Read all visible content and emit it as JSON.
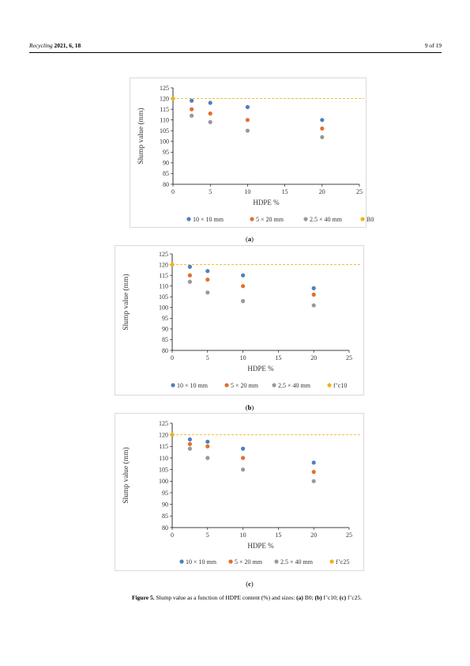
{
  "header": {
    "journal_name": "Recycling",
    "citation": "2021, 6, 18",
    "page": "9 of 19"
  },
  "colors": {
    "series_10x10": "#4e81bd",
    "series_5x20": "#e0702f",
    "series_2_5x40": "#999999",
    "reference": "#f2b21a"
  },
  "figure": {
    "caption_label": "Figure 5.",
    "caption_text": "Slump value as a function of HDPE content (%) and sizes: ",
    "caption_parts": [
      {
        "letter": "(a)",
        "text": " B0; "
      },
      {
        "letter": "(b)",
        "text": " f’c10; "
      },
      {
        "letter": "(c)",
        "text": " f’c25."
      }
    ],
    "panels": [
      {
        "label_open": "(",
        "label_letter": "a",
        "label_close": ")"
      },
      {
        "label_open": "(",
        "label_letter": "b",
        "label_close": ")"
      },
      {
        "label_open": "(",
        "label_letter": "c",
        "label_close": ")"
      }
    ]
  },
  "chart_data": [
    {
      "type": "scatter",
      "xlabel": "HDPE  %",
      "ylabel": "Slump value (mm)",
      "xlim": [
        0,
        25
      ],
      "ylim": [
        80,
        125
      ],
      "xticks": [
        "0",
        "5",
        "10",
        "15",
        "20",
        "25"
      ],
      "yticks": [
        "80",
        "85",
        "90",
        "95",
        "100",
        "105",
        "110",
        "115",
        "120",
        "125"
      ],
      "legend_position": "bottom",
      "series": [
        {
          "name": "10  × 10 mm",
          "x": [
            2.5,
            5,
            10,
            20
          ],
          "y": [
            119,
            118,
            116,
            110
          ]
        },
        {
          "name": "5 × 20 mm",
          "x": [
            2.5,
            5,
            10,
            20
          ],
          "y": [
            115,
            113,
            110,
            106
          ]
        },
        {
          "name": "2.5 × 40 mm",
          "x": [
            2.5,
            5,
            10,
            20
          ],
          "y": [
            112,
            109,
            105,
            102
          ]
        },
        {
          "name": "B0",
          "x": [
            0
          ],
          "y": [
            120
          ],
          "reference_line": true
        }
      ]
    },
    {
      "type": "scatter",
      "xlabel": "HDPE %",
      "ylabel": "Slump value (mm)",
      "xlim": [
        0,
        25
      ],
      "ylim": [
        80,
        125
      ],
      "xticks": [
        "0",
        "5",
        "10",
        "15",
        "20",
        "25"
      ],
      "yticks": [
        "80",
        "85",
        "90",
        "95",
        "100",
        "105",
        "110",
        "115",
        "120",
        "125"
      ],
      "legend_position": "bottom",
      "series": [
        {
          "name": "10 × 10 mm",
          "x": [
            2.5,
            5,
            10,
            20
          ],
          "y": [
            119,
            117,
            115,
            109
          ]
        },
        {
          "name": "5 × 20 mm",
          "x": [
            2.5,
            5,
            10,
            20
          ],
          "y": [
            115,
            113,
            110,
            106
          ]
        },
        {
          "name": "2.5 × 40 mm",
          "x": [
            2.5,
            5,
            10,
            20
          ],
          "y": [
            112,
            107,
            103,
            101
          ]
        },
        {
          "name": "f’c10",
          "x": [
            0
          ],
          "y": [
            120
          ],
          "reference_line": true
        }
      ]
    },
    {
      "type": "scatter",
      "xlabel": "HDPE  %",
      "ylabel": "Slump value (mm)",
      "xlim": [
        0,
        25
      ],
      "ylim": [
        80,
        125
      ],
      "xticks": [
        "0",
        "5",
        "10",
        "15",
        "20",
        "25"
      ],
      "yticks": [
        "80",
        "85",
        "90",
        "95",
        "100",
        "105",
        "110",
        "115",
        "120",
        "125"
      ],
      "legend_position": "bottom",
      "series": [
        {
          "name": "10 × 10 mm",
          "x": [
            2.5,
            5,
            10,
            20
          ],
          "y": [
            118,
            117,
            114,
            108
          ]
        },
        {
          "name": "5 × 20 mm",
          "x": [
            2.5,
            5,
            10,
            20
          ],
          "y": [
            116,
            115,
            110,
            104
          ]
        },
        {
          "name": "2.5 × 40 mm",
          "x": [
            2.5,
            5,
            10,
            20
          ],
          "y": [
            114,
            110,
            105,
            100
          ]
        },
        {
          "name": "f’c25",
          "x": [
            0
          ],
          "y": [
            120
          ],
          "reference_line": true
        }
      ]
    }
  ]
}
